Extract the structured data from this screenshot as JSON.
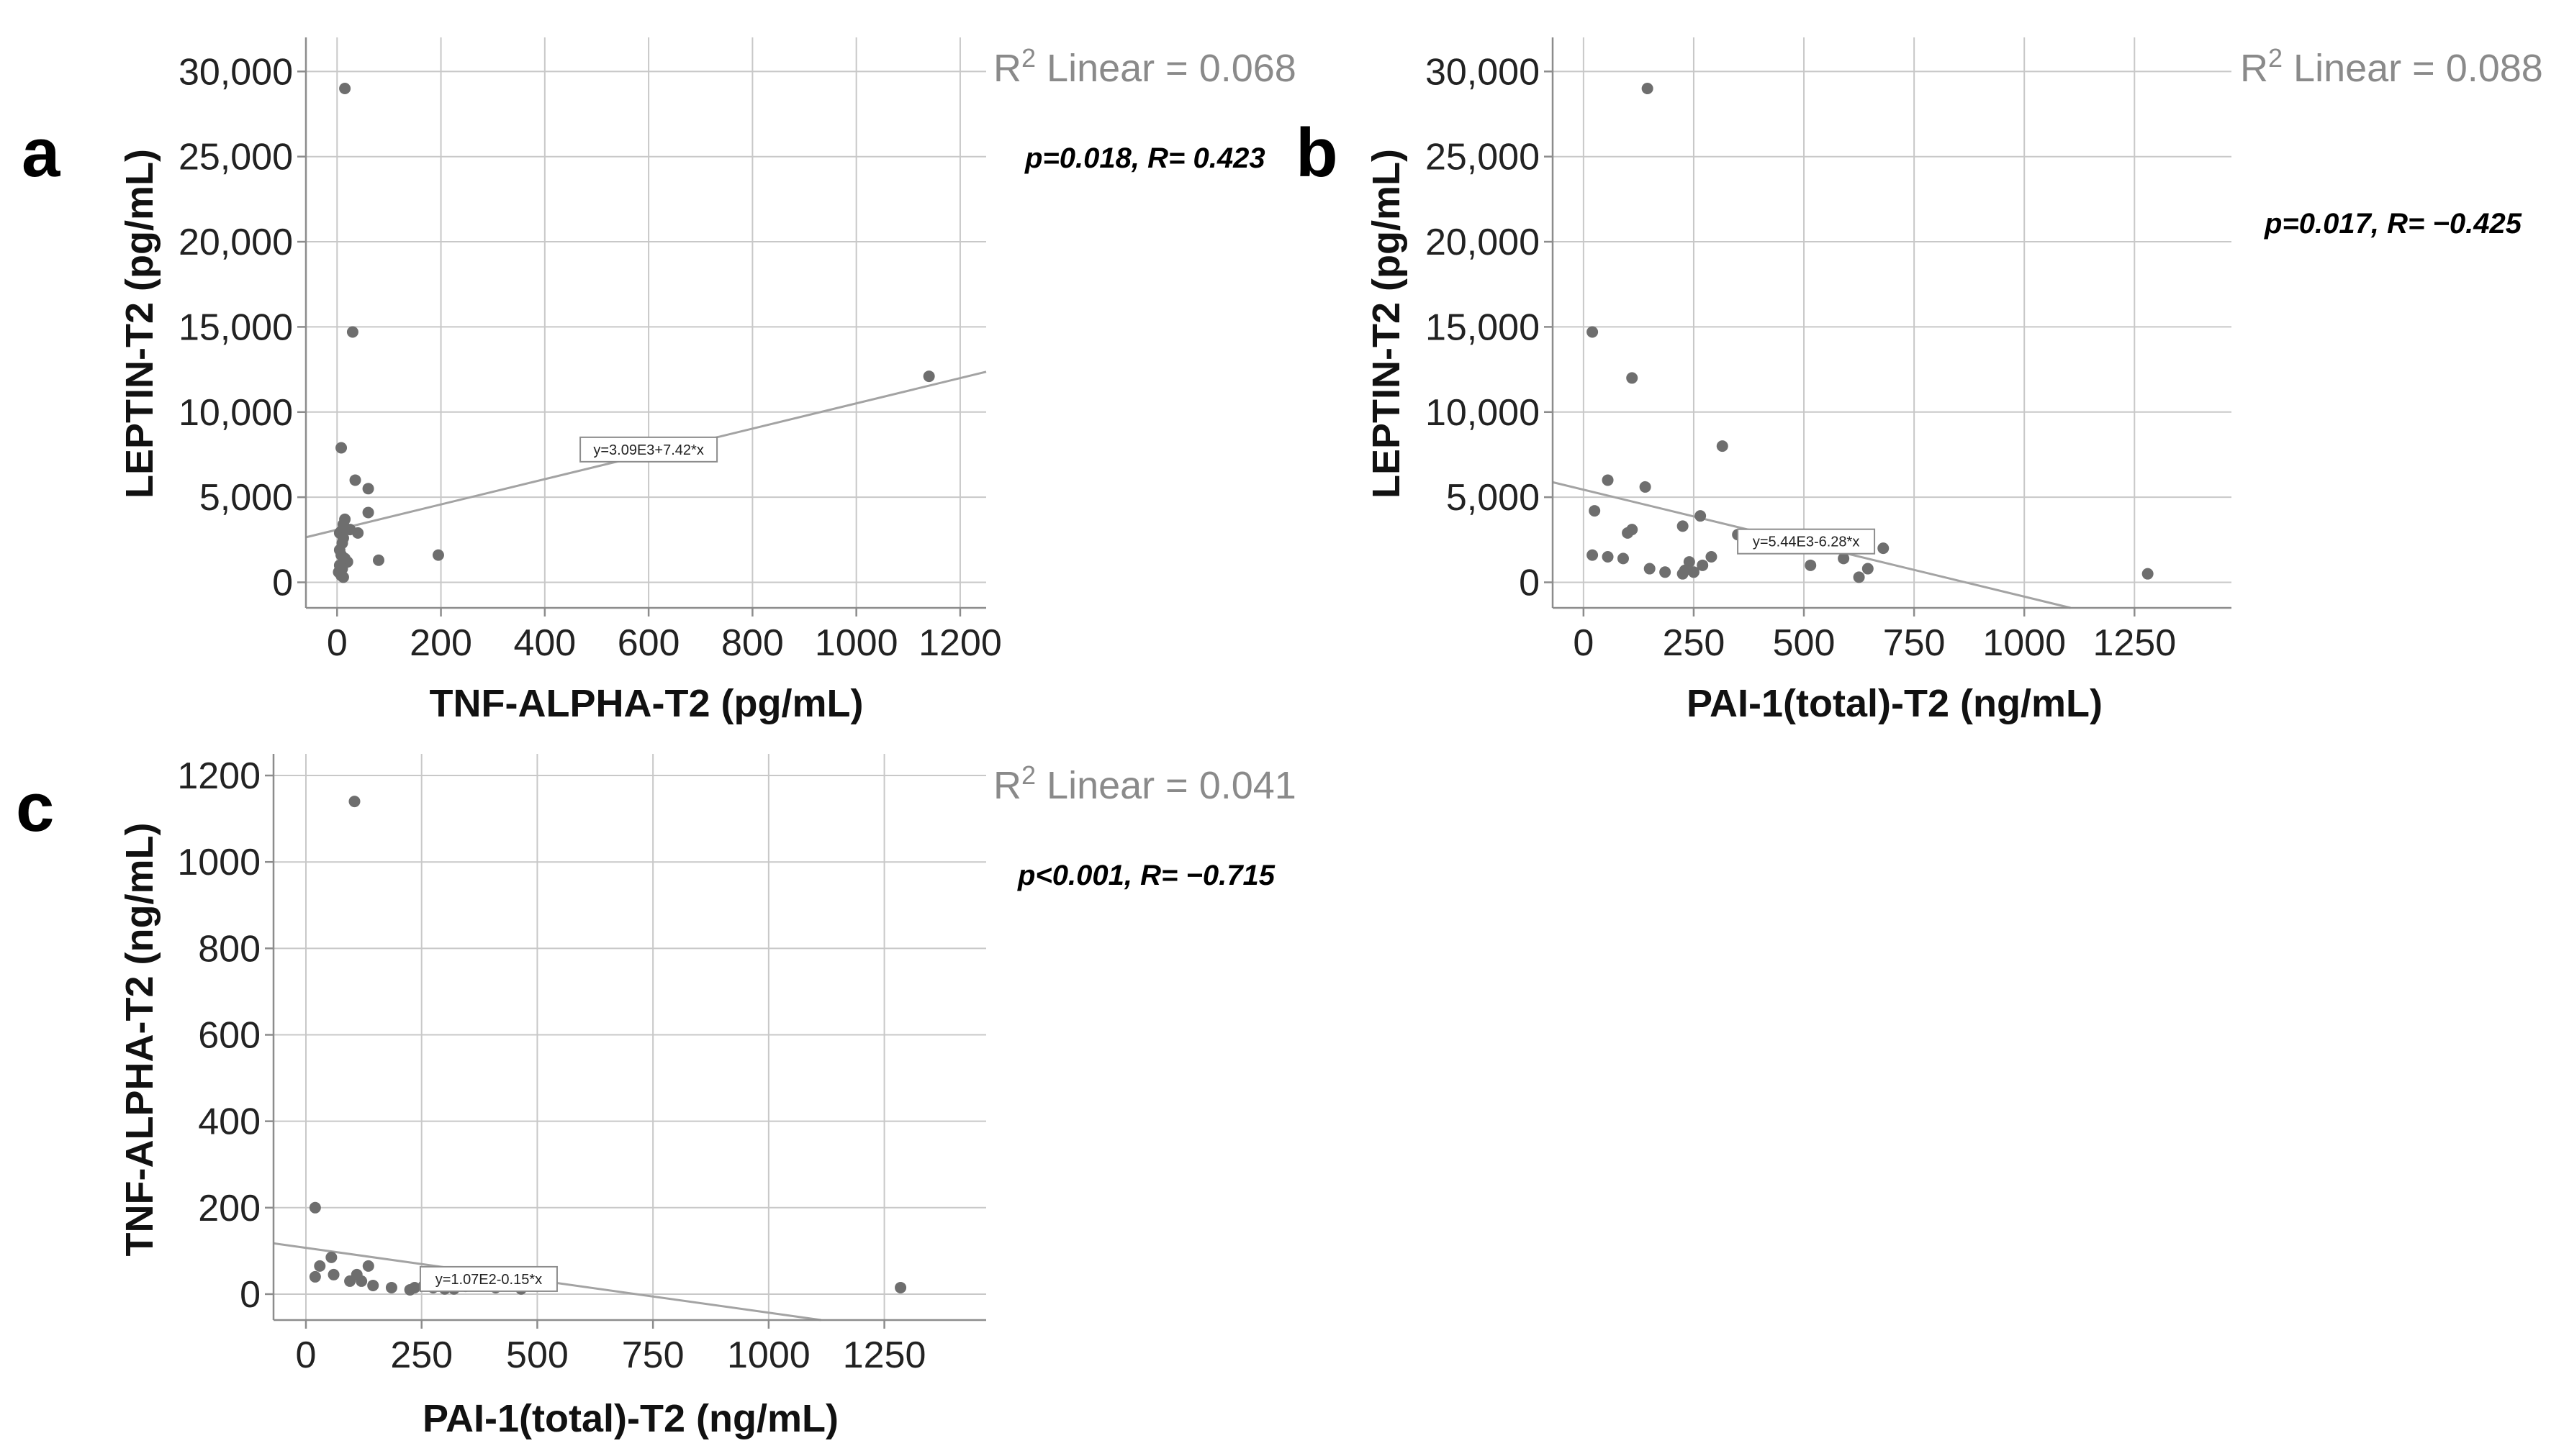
{
  "chart_data": [
    {
      "type": "scatter",
      "panel": "a",
      "xlabel": "TNF-ALPHA-T2 (pg/mL)",
      "ylabel": "LEPTIN-T2 (pg/mL)",
      "xlim": [
        -60,
        1250
      ],
      "ylim": [
        -1500,
        32000
      ],
      "xticks": [
        0,
        200,
        400,
        600,
        800,
        1000,
        1200
      ],
      "xtick_labels": [
        "0",
        "200",
        "400",
        "600",
        "800",
        "1000",
        "1200"
      ],
      "yticks": [
        0,
        5000,
        10000,
        15000,
        20000,
        25000,
        30000
      ],
      "ytick_labels": [
        "0",
        "5,000",
        "10,000",
        "15,000",
        "20,000",
        "25,000",
        "30,000"
      ],
      "grid": true,
      "r2_text": "Linear = 0.068",
      "stat_text": "p=0.018, R= 0.423",
      "equation": "y=3.09E3+7.42*x",
      "equation_anchor": [
        600,
        7800
      ],
      "fit": {
        "intercept": 3090,
        "slope": 7.42
      },
      "points": [
        {
          "x": 15,
          "y": 29000
        },
        {
          "x": 30,
          "y": 14700
        },
        {
          "x": 8,
          "y": 7900
        },
        {
          "x": 35,
          "y": 6000
        },
        {
          "x": 60,
          "y": 5500
        },
        {
          "x": 60,
          "y": 4100
        },
        {
          "x": 15,
          "y": 3700
        },
        {
          "x": 12,
          "y": 3400
        },
        {
          "x": 8,
          "y": 3000
        },
        {
          "x": 5,
          "y": 2900
        },
        {
          "x": 25,
          "y": 3100
        },
        {
          "x": 40,
          "y": 2900
        },
        {
          "x": 12,
          "y": 2600
        },
        {
          "x": 10,
          "y": 2300
        },
        {
          "x": 5,
          "y": 1900
        },
        {
          "x": 8,
          "y": 1600
        },
        {
          "x": 15,
          "y": 1400
        },
        {
          "x": 20,
          "y": 1200
        },
        {
          "x": 5,
          "y": 1000
        },
        {
          "x": 10,
          "y": 800
        },
        {
          "x": 3,
          "y": 600
        },
        {
          "x": 8,
          "y": 400
        },
        {
          "x": 12,
          "y": 300
        },
        {
          "x": 80,
          "y": 1300
        },
        {
          "x": 195,
          "y": 1600
        },
        {
          "x": 1140,
          "y": 12100
        }
      ]
    },
    {
      "type": "scatter",
      "panel": "b",
      "xlabel": "PAI-1(total)-T2 (ng/mL)",
      "ylabel": "LEPTIN-T2 (pg/mL)",
      "xlim": [
        -70,
        1470
      ],
      "ylim": [
        -1500,
        32000
      ],
      "xticks": [
        0,
        250,
        500,
        750,
        1000,
        1250
      ],
      "xtick_labels": [
        "0",
        "250",
        "500",
        "750",
        "1000",
        "1250"
      ],
      "yticks": [
        0,
        5000,
        10000,
        15000,
        20000,
        25000,
        30000
      ],
      "ytick_labels": [
        "0",
        "5,000",
        "10,000",
        "15,000",
        "20,000",
        "25,000",
        "30,000"
      ],
      "grid": true,
      "r2_text": "Linear = 0.088",
      "stat_text": "p=0.017, R= −0.425",
      "equation": "y=5.44E3-6.28*x",
      "equation_anchor": [
        505,
        2400
      ],
      "fit": {
        "intercept": 5440,
        "slope": -6.28
      },
      "points": [
        {
          "x": 145,
          "y": 29000
        },
        {
          "x": 20,
          "y": 14700
        },
        {
          "x": 110,
          "y": 12000
        },
        {
          "x": 315,
          "y": 8000
        },
        {
          "x": 55,
          "y": 6000
        },
        {
          "x": 140,
          "y": 5600
        },
        {
          "x": 25,
          "y": 4200
        },
        {
          "x": 265,
          "y": 3900
        },
        {
          "x": 225,
          "y": 3300
        },
        {
          "x": 100,
          "y": 2900
        },
        {
          "x": 110,
          "y": 3100
        },
        {
          "x": 350,
          "y": 2800
        },
        {
          "x": 680,
          "y": 2000
        },
        {
          "x": 20,
          "y": 1600
        },
        {
          "x": 55,
          "y": 1500
        },
        {
          "x": 90,
          "y": 1400
        },
        {
          "x": 290,
          "y": 1500
        },
        {
          "x": 240,
          "y": 1200
        },
        {
          "x": 270,
          "y": 1000
        },
        {
          "x": 150,
          "y": 800
        },
        {
          "x": 185,
          "y": 600
        },
        {
          "x": 230,
          "y": 700
        },
        {
          "x": 225,
          "y": 500
        },
        {
          "x": 250,
          "y": 600
        },
        {
          "x": 515,
          "y": 1000
        },
        {
          "x": 590,
          "y": 1400
        },
        {
          "x": 645,
          "y": 800
        },
        {
          "x": 625,
          "y": 300
        },
        {
          "x": 1280,
          "y": 500
        }
      ]
    },
    {
      "type": "scatter",
      "panel": "c",
      "xlabel": "PAI-1(total)-T2 (ng/mL)",
      "ylabel": "TNF-ALPHA-T2 (ng/mL)",
      "xlim": [
        -70,
        1470
      ],
      "ylim": [
        -60,
        1250
      ],
      "xticks": [
        0,
        250,
        500,
        750,
        1000,
        1250
      ],
      "xtick_labels": [
        "0",
        "250",
        "500",
        "750",
        "1000",
        "1250"
      ],
      "yticks": [
        0,
        200,
        400,
        600,
        800,
        1000,
        1200
      ],
      "ytick_labels": [
        "0",
        "200",
        "400",
        "600",
        "800",
        "1000",
        "1200"
      ],
      "grid": true,
      "r2_text": "Linear = 0.041",
      "stat_text": "p<0.001, R= −0.715",
      "equation": "y=1.07E2-0.15*x",
      "equation_anchor": [
        395,
        35
      ],
      "fit": {
        "intercept": 107,
        "slope": -0.15
      },
      "points": [
        {
          "x": 105,
          "y": 1140
        },
        {
          "x": 20,
          "y": 200
        },
        {
          "x": 55,
          "y": 85
        },
        {
          "x": 30,
          "y": 65
        },
        {
          "x": 135,
          "y": 65
        },
        {
          "x": 20,
          "y": 40
        },
        {
          "x": 60,
          "y": 45
        },
        {
          "x": 110,
          "y": 45
        },
        {
          "x": 95,
          "y": 30
        },
        {
          "x": 120,
          "y": 30
        },
        {
          "x": 145,
          "y": 20
        },
        {
          "x": 185,
          "y": 15
        },
        {
          "x": 225,
          "y": 10
        },
        {
          "x": 235,
          "y": 15
        },
        {
          "x": 255,
          "y": 20
        },
        {
          "x": 275,
          "y": 15
        },
        {
          "x": 300,
          "y": 12
        },
        {
          "x": 320,
          "y": 12
        },
        {
          "x": 345,
          "y": 18
        },
        {
          "x": 410,
          "y": 15
        },
        {
          "x": 465,
          "y": 12
        },
        {
          "x": 1285,
          "y": 15
        }
      ]
    }
  ]
}
